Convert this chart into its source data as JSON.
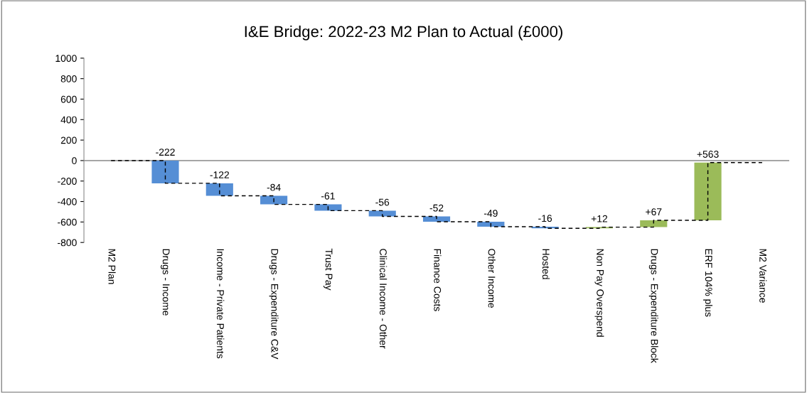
{
  "chart_data": {
    "type": "bar",
    "title": "I&E Bridge: 2022-23 M2 Plan to Actual (£000)",
    "categories": [
      "M2 Plan",
      "Drugs - Income",
      "Income - Private Patients",
      "Drugs - Expenditure C&V",
      "Trust Pay",
      "Clinical Income - Other",
      "Finance Costs",
      "Other Income",
      "Hosted",
      "Non Pay Overspend",
      "Drugs - Expenditure Block",
      "ERF 104% plus",
      "M2 Variance"
    ],
    "series": [
      {
        "type": "bar",
        "values": [
          null,
          -222,
          -122,
          -84,
          -61,
          -56,
          -52,
          -49,
          -16,
          12,
          67,
          563,
          null
        ],
        "base": [
          null,
          0,
          -222,
          -344,
          -428,
          -489,
          -545,
          -597,
          -646,
          -662,
          -650,
          -583,
          null
        ],
        "colors": [
          null,
          "#558ed5",
          "#558ed5",
          "#558ed5",
          "#558ed5",
          "#558ed5",
          "#558ed5",
          "#558ed5",
          "#558ed5",
          "#9bbb59",
          "#9bbb59",
          "#9bbb59",
          null
        ],
        "value_labels": [
          null,
          "-222",
          "-122",
          "-84",
          "-61",
          "-56",
          "-52",
          "-49",
          "-16",
          "+12",
          "+67",
          "+563",
          null
        ]
      },
      {
        "type": "step",
        "color": "#000000",
        "line_style": "dashed",
        "values": [
          0,
          -222,
          -344,
          -428,
          -489,
          -545,
          -597,
          -646,
          -662,
          -650,
          -583,
          -20,
          -20
        ]
      }
    ],
    "ylim": [
      -800,
      1000
    ],
    "yticks": [
      -800,
      -600,
      -400,
      -200,
      0,
      200,
      400,
      600,
      800,
      1000
    ],
    "ref_lines": [
      {
        "axis": "y",
        "value": 0,
        "color": "#888888"
      }
    ],
    "grid": false,
    "legend": false
  }
}
